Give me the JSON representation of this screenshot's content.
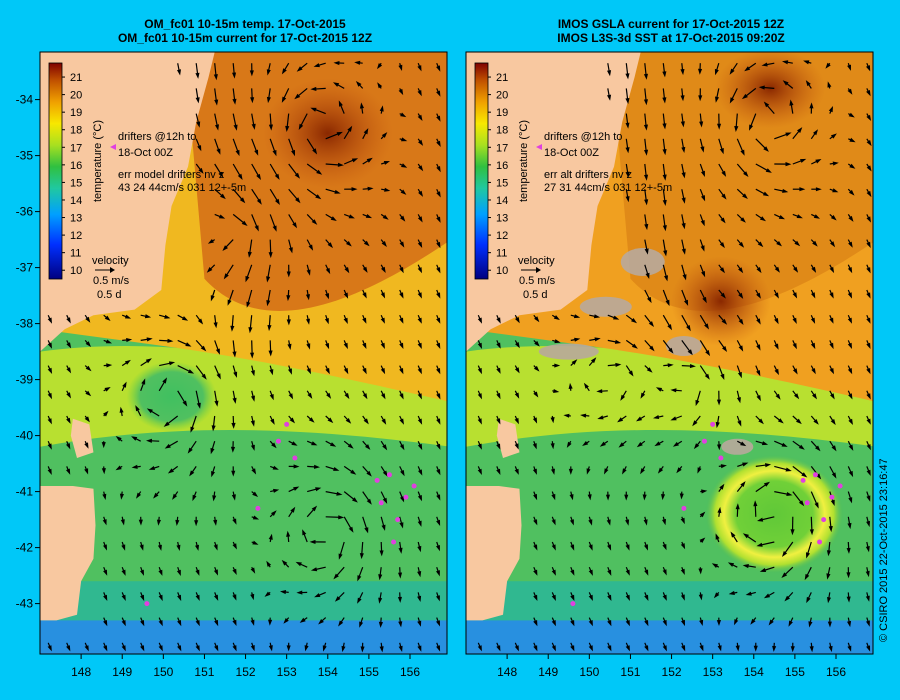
{
  "chart_data": [
    {
      "type": "heatmap",
      "title_line1": "OM_fc01 10-15m temp. 17-Oct-2015",
      "title_line2": "OM_fc01 10-15m current for 17-Oct-2015 12Z",
      "colorbar": {
        "label": "temperature (°C)",
        "ticks": [
          21,
          20,
          19,
          18,
          17,
          16,
          15,
          14,
          13,
          12,
          11,
          10
        ],
        "range": [
          9.5,
          21.8
        ]
      },
      "x_ticks": [
        148,
        149,
        150,
        151,
        152,
        153,
        154,
        155,
        156
      ],
      "y_ticks": [
        -34,
        -35,
        -36,
        -37,
        -38,
        -39,
        -40,
        -41,
        -42,
        -43
      ],
      "xlim": [
        147.0,
        156.9
      ],
      "ylim": [
        -43.9,
        -33.15
      ],
      "annotations": {
        "drifters_line1": "drifters @12h to",
        "drifters_line2": "18-Oct 00Z",
        "err_line1": "err model drifters nv z",
        "err_line2": "43 24 44cm/s 031 12+-5m",
        "velocity_label": "velocity",
        "velocity_speed": "0.5 m/s",
        "velocity_time": "0.5 d"
      }
    },
    {
      "type": "heatmap",
      "title_line1": "IMOS GSLA current for 17-Oct-2015 12Z",
      "title_line2": "IMOS L3S-3d SST at 17-Oct-2015 09:20Z",
      "colorbar": {
        "label": "temperature (°C)",
        "ticks": [
          21,
          20,
          19,
          18,
          17,
          16,
          15,
          14,
          13,
          12,
          11,
          10
        ],
        "range": [
          9.5,
          21.8
        ]
      },
      "x_ticks": [
        148,
        149,
        150,
        151,
        152,
        153,
        154,
        155,
        156
      ],
      "y_ticks": [],
      "xlim": [
        147.0,
        156.9
      ],
      "ylim": [
        -43.9,
        -33.15
      ],
      "annotations": {
        "drifters_line1": "drifters @12h to",
        "drifters_line2": "18-Oct 00Z",
        "err_line1": "err alt drifters nv z",
        "err_line2": "27 31 44cm/s 031 12+-5m",
        "velocity_label": "velocity",
        "velocity_speed": "0.5 m/s",
        "velocity_time": "0.5 d"
      }
    }
  ],
  "copyright": "© CSIRO 2015   22-Oct-2015 23:16:47",
  "colors": {
    "background": "#00c8f8",
    "land": "#f8c8a0",
    "drifter": "#e040e0",
    "no_data": "#b8a89c"
  }
}
